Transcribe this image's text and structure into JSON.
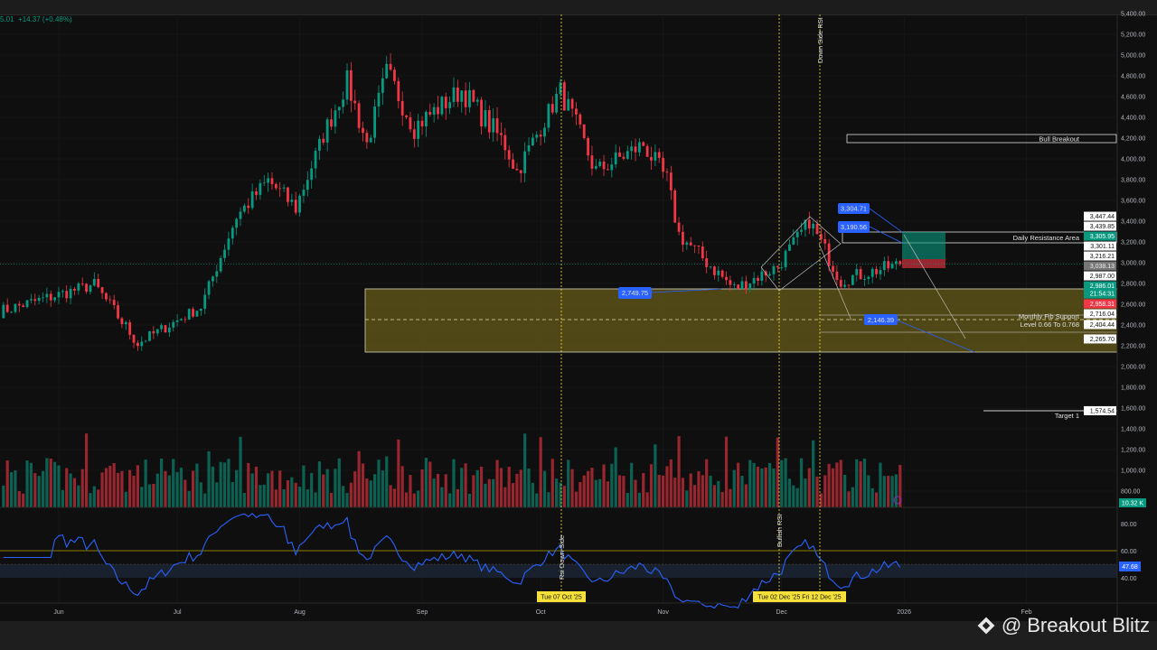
{
  "header": {
    "legend_text": "5.01  +14.37 (+0.48%)"
  },
  "watermark": {
    "text": "@ Breakout Blitz"
  },
  "colors": {
    "up": "#089981",
    "down": "#f23645",
    "background": "#0f0f0f",
    "rsi": "#2962ff",
    "annotation": "#f5e03a",
    "zone": "#5b5117"
  },
  "chart_data": {
    "type": "candlestick",
    "title": "",
    "x_start": "2025-05-17",
    "x_end": "2025-12-31",
    "x_ticks": [
      "Jun",
      "Jul",
      "Aug",
      "Sep",
      "Oct",
      "Nov",
      "Dec",
      "2026",
      "Feb"
    ],
    "y_ticks": [
      "5,400.00",
      "5,200.00",
      "5,000.00",
      "4,800.00",
      "4,600.00",
      "4,400.00",
      "4,200.00",
      "4,000.00",
      "3,800.00",
      "3,600.00",
      "3,400.00",
      "3,200.00",
      "3,000.00",
      "2,800.00",
      "2,600.00",
      "2,400.00",
      "2,200.00",
      "2,000.00",
      "1,800.00",
      "1,600.00",
      "1,400.00",
      "1,200.00",
      "1,000.00",
      "800.00"
    ],
    "ylim": [
      800,
      5400
    ],
    "price_path": [
      [
        "2025-05-17",
        2530
      ],
      [
        "2025-06-10",
        2790
      ],
      [
        "2025-06-21",
        2226
      ],
      [
        "2025-07-07",
        2574
      ],
      [
        "2025-07-16",
        3443
      ],
      [
        "2025-07-24",
        3791
      ],
      [
        "2025-07-31",
        3530
      ],
      [
        "2025-08-07",
        4226
      ],
      [
        "2025-08-13",
        4748
      ],
      [
        "2025-08-18",
        4139
      ],
      [
        "2025-08-23",
        4835
      ],
      [
        "2025-08-30",
        4313
      ],
      [
        "2025-09-11",
        4661
      ],
      [
        "2025-09-22",
        4139
      ],
      [
        "2025-09-25",
        3878
      ],
      [
        "2025-10-06",
        4661
      ],
      [
        "2025-10-15",
        3878
      ],
      [
        "2025-10-27",
        4139
      ],
      [
        "2025-11-02",
        3791
      ],
      [
        "2025-11-05",
        3270
      ],
      [
        "2025-11-19",
        2748
      ],
      [
        "2025-11-30",
        2965
      ],
      [
        "2025-12-08",
        3400
      ],
      [
        "2025-12-16",
        2835
      ],
      [
        "2025-12-31",
        2986
      ]
    ],
    "last_price": "2,986.01",
    "countdown": "21:54:31",
    "price_tags": [
      {
        "value": "3,447.44",
        "price": 3447.44,
        "style": "white"
      },
      {
        "value": "3,439.85",
        "price": 3439.85,
        "style": "white"
      },
      {
        "value": "3,305.95",
        "price": 3305.95,
        "style": "green"
      },
      {
        "value": "3,301.11",
        "price": 3301.11,
        "style": "white"
      },
      {
        "value": "3,216.21",
        "price": 3216.21,
        "style": "white"
      },
      {
        "value": "3,038.13",
        "price": 3038.13,
        "style": "gray"
      },
      {
        "value": "2,987.00",
        "price": 2987.0,
        "style": "white"
      },
      {
        "value": "2,958.31",
        "price": 2958.31,
        "style": "red"
      },
      {
        "value": "2,716.04",
        "price": 2716.04,
        "style": "white"
      },
      {
        "value": "2,404.44",
        "price": 2404.44,
        "style": "white"
      },
      {
        "value": "2,265.70",
        "price": 2265.7,
        "style": "white"
      },
      {
        "value": "1,574.54",
        "price": 1574.54,
        "style": "white"
      }
    ],
    "volume": {
      "last": "10.32 K"
    },
    "rsi": {
      "levels": [
        "80.00",
        "60.00",
        "40.00"
      ],
      "upper": 60,
      "lower": 40,
      "value": "47.68",
      "current": 47.68
    }
  },
  "annotations": {
    "bull_breakout": "Bull Breakout",
    "daily_resistance": "Daily Resistance Area",
    "fib_support_1": "Monthly Fib Support",
    "fib_support_2": "Level 0.66 To 0.768",
    "target": "Target 1",
    "down_side_rsi": "Down Side RSI",
    "rsi_down_side": "Rsi Down Side",
    "bullish_rsi": "Bullish RSI",
    "callouts": [
      "2,749.75",
      "3,304.71",
      "3,190.56",
      "2,146.39"
    ],
    "date_tag_1": "Tue 07 Oct '25",
    "date_tag_2": "Tue 02 Dec '25   Fri 12 Dec '25"
  }
}
